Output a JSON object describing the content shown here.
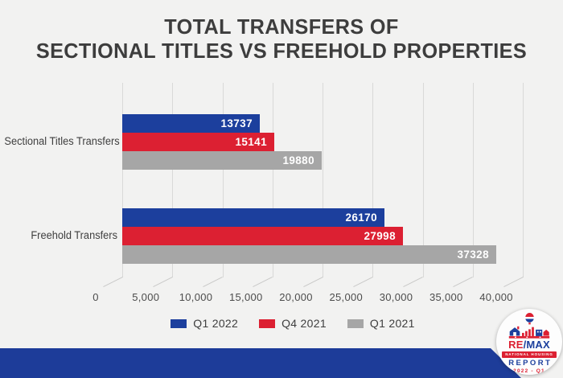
{
  "title": {
    "line1": "TOTAL TRANSFERS OF",
    "line2": "SECTIONAL TITLES VS FREEHOLD PROPERTIES"
  },
  "chart_data": {
    "type": "bar",
    "orientation": "horizontal",
    "title": "TOTAL TRANSFERS OF SECTIONAL TITLES VS FREEHOLD PROPERTIES",
    "categories": [
      "Sectional Titles Transfers",
      "Freehold Transfers"
    ],
    "series": [
      {
        "name": "Q1 2022",
        "color": "#1c3f9d",
        "values": [
          13737,
          26170
        ]
      },
      {
        "name": "Q4 2021",
        "color": "#dc2032",
        "values": [
          15141,
          27998
        ]
      },
      {
        "name": "Q1 2021",
        "color": "#a6a6a6",
        "values": [
          19880,
          37328
        ]
      }
    ],
    "xlim": [
      0,
      40000
    ],
    "xticks": [
      0,
      5000,
      10000,
      15000,
      20000,
      25000,
      30000,
      35000,
      40000
    ],
    "xtick_labels": [
      "0",
      "5,000",
      "10,000",
      "15,000",
      "20,000",
      "25,000",
      "30,000",
      "35,000",
      "40,000"
    ],
    "grid": true,
    "legend_position": "bottom",
    "value_labels": "inside-end, no thousand separators"
  },
  "logo_badge": {
    "brand_re": "RE",
    "brand_slash": "/",
    "brand_max": "MAX",
    "ribbon": "NATIONAL HOUSING",
    "report": "REPORT",
    "edition": "2022 - Q1"
  },
  "colors": {
    "background": "#f2f2f1",
    "bar_blue": "#1c3f9d",
    "bar_red": "#dc2032",
    "bar_gray": "#a6a6a6",
    "footer_band": "#1d3c99",
    "title_text": "#3d3d3d",
    "axis_text": "#4c4c4c",
    "category_text": "#3f3f3f",
    "gridline": "#d9d9d8",
    "value_label_text": "#ffffff"
  }
}
